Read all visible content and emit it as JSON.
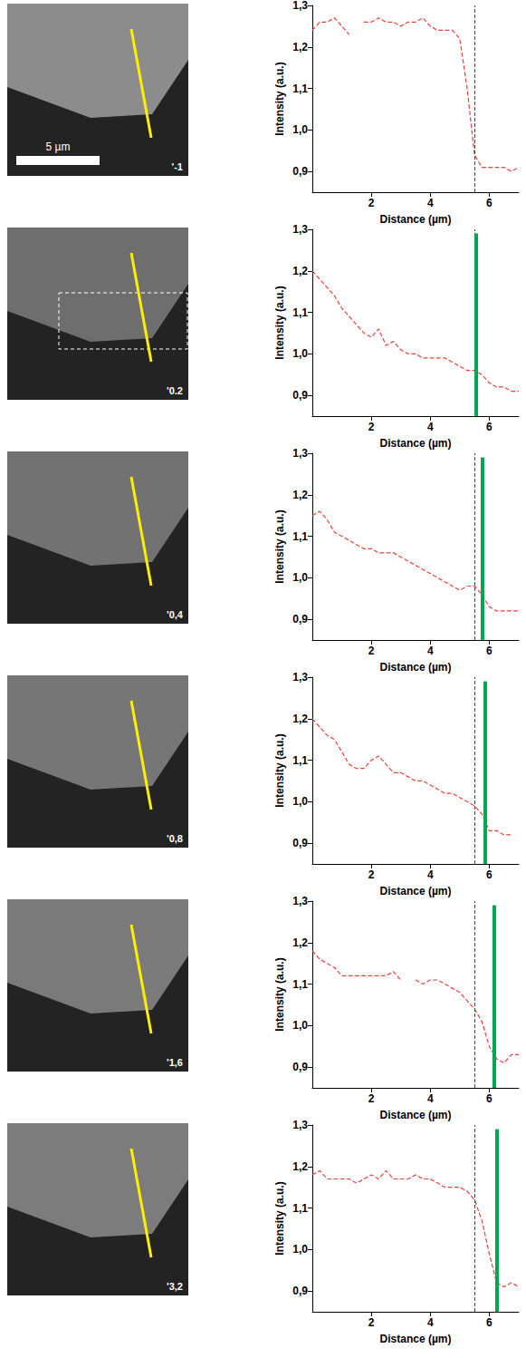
{
  "images": [
    {
      "label": "'-1",
      "scale_bar": "5 µm",
      "roi_box": false
    },
    {
      "label": "'0.2",
      "roi_box": true
    },
    {
      "label": "'0,4",
      "roi_box": false
    },
    {
      "label": "'0,8",
      "roi_box": false
    },
    {
      "label": "'1,6",
      "roi_box": false
    },
    {
      "label": "'3,2",
      "roi_box": false
    }
  ],
  "chart_data": [
    {
      "type": "line",
      "x_label": "Distance (µm)",
      "y_label": "Intensity (a.u.)",
      "x": [
        0,
        0.25,
        0.5,
        0.75,
        1,
        1.25,
        1.5,
        1.75,
        2,
        2.25,
        2.5,
        2.75,
        3,
        3.25,
        3.5,
        3.75,
        4,
        4.25,
        4.5,
        4.75,
        5,
        5.25,
        5.5,
        5.75,
        6,
        6.25,
        6.5,
        6.75,
        7
      ],
      "values": [
        1.24,
        1.26,
        1.26,
        1.27,
        1.25,
        1.23,
        null,
        1.26,
        1.26,
        1.27,
        1.26,
        1.26,
        1.25,
        1.26,
        1.26,
        1.27,
        1.25,
        1.24,
        1.24,
        1.24,
        1.22,
        1.1,
        0.94,
        0.91,
        0.91,
        0.91,
        0.91,
        0.9,
        0.91
      ],
      "color": "#e8423a",
      "line_style": "dashed",
      "xlim": [
        0,
        7
      ],
      "xticks": [
        2,
        4,
        6
      ],
      "ylim": [
        0.85,
        1.3
      ],
      "yticks": [
        {
          "value": 0.9,
          "label": "0,9"
        },
        {
          "value": 1.0,
          "label": "1,0"
        },
        {
          "value": 1.1,
          "label": "1,1"
        },
        {
          "value": 1.2,
          "label": "1,2"
        },
        {
          "value": 1.3,
          "label": "1,3"
        }
      ],
      "dashed_line_x": 5.5,
      "grid": false
    },
    {
      "type": "line",
      "x_label": "Distance (µm)",
      "y_label": "Intensity (a.u.)",
      "x": [
        0,
        0.25,
        0.5,
        0.75,
        1,
        1.25,
        1.5,
        1.75,
        2,
        2.25,
        2.5,
        2.75,
        3,
        3.25,
        3.5,
        3.75,
        4,
        4.25,
        4.5,
        4.75,
        5,
        5.25,
        5.5,
        5.75,
        6,
        6.25,
        6.5,
        6.75,
        7
      ],
      "values": [
        1.2,
        1.18,
        1.16,
        1.14,
        1.11,
        1.09,
        1.07,
        1.05,
        1.04,
        1.06,
        1.02,
        1.03,
        1.01,
        1.0,
        1.0,
        0.99,
        0.99,
        0.99,
        0.99,
        0.98,
        0.97,
        0.96,
        0.96,
        0.95,
        0.93,
        0.92,
        0.92,
        0.91,
        0.91
      ],
      "color": "#e8423a",
      "line_style": "dashed",
      "xlim": [
        0,
        7
      ],
      "xticks": [
        2,
        4,
        6
      ],
      "ylim": [
        0.85,
        1.3
      ],
      "yticks": [
        {
          "value": 0.9,
          "label": "0,9"
        },
        {
          "value": 1.0,
          "label": "1,0"
        },
        {
          "value": 1.1,
          "label": "1,1"
        },
        {
          "value": 1.2,
          "label": "1,2"
        },
        {
          "value": 1.3,
          "label": "1,3"
        }
      ],
      "dashed_line_x": 5.5,
      "green_bar_x": 5.55,
      "green_bar_top": 1.29,
      "green_bar_color": "#00a651",
      "grid": false
    },
    {
      "type": "line",
      "x_label": "Distance (µm)",
      "y_label": "Intensity (a.u.)",
      "x": [
        0,
        0.25,
        0.5,
        0.75,
        1,
        1.25,
        1.5,
        1.75,
        2,
        2.25,
        2.5,
        2.75,
        3,
        3.25,
        3.5,
        3.75,
        4,
        4.25,
        4.5,
        4.75,
        5,
        5.25,
        5.5,
        5.75,
        6,
        6.25,
        6.5,
        6.75,
        7
      ],
      "values": [
        1.15,
        1.16,
        1.14,
        1.11,
        1.1,
        1.09,
        1.08,
        1.07,
        1.07,
        1.06,
        1.06,
        1.06,
        1.05,
        1.04,
        1.03,
        1.02,
        1.01,
        1.0,
        0.99,
        0.98,
        0.97,
        0.98,
        0.98,
        0.96,
        0.93,
        0.92,
        0.92,
        0.92,
        0.92
      ],
      "color": "#e8423a",
      "line_style": "dashed",
      "xlim": [
        0,
        7
      ],
      "xticks": [
        2,
        4,
        6
      ],
      "ylim": [
        0.85,
        1.3
      ],
      "yticks": [
        {
          "value": 0.9,
          "label": "0,9"
        },
        {
          "value": 1.0,
          "label": "1,0"
        },
        {
          "value": 1.1,
          "label": "1,1"
        },
        {
          "value": 1.2,
          "label": "1,2"
        },
        {
          "value": 1.3,
          "label": "1,3"
        }
      ],
      "dashed_line_x": 5.5,
      "green_bar_x": 5.75,
      "green_bar_top": 1.29,
      "green_bar_color": "#00a651",
      "grid": false
    },
    {
      "type": "line",
      "x_label": "Distance (µm)",
      "y_label": "Intensity (a.u.)",
      "x": [
        0,
        0.25,
        0.5,
        0.75,
        1,
        1.25,
        1.5,
        1.75,
        2,
        2.25,
        2.5,
        2.75,
        3,
        3.25,
        3.5,
        3.75,
        4,
        4.25,
        4.5,
        4.75,
        5,
        5.25,
        5.5,
        5.75,
        6,
        6.25,
        6.5,
        6.75,
        7
      ],
      "values": [
        1.2,
        1.18,
        1.16,
        1.15,
        1.12,
        1.09,
        1.08,
        1.08,
        1.1,
        1.11,
        1.09,
        1.07,
        1.07,
        1.06,
        1.05,
        1.05,
        1.04,
        1.03,
        1.02,
        1.02,
        1.01,
        1.0,
        0.99,
        0.97,
        0.93,
        0.93,
        0.92,
        0.92,
        null
      ],
      "color": "#e8423a",
      "line_style": "dashed",
      "xlim": [
        0,
        7
      ],
      "xticks": [
        2,
        4,
        6
      ],
      "ylim": [
        0.85,
        1.3
      ],
      "yticks": [
        {
          "value": 0.9,
          "label": "0,9"
        },
        {
          "value": 1.0,
          "label": "1,0"
        },
        {
          "value": 1.1,
          "label": "1,1"
        },
        {
          "value": 1.2,
          "label": "1,2"
        },
        {
          "value": 1.3,
          "label": "1,3"
        }
      ],
      "dashed_line_x": 5.5,
      "green_bar_x": 5.85,
      "green_bar_top": 1.29,
      "green_bar_color": "#00a651",
      "grid": false
    },
    {
      "type": "line",
      "x_label": "Distance (µm)",
      "y_label": "Intensity (a.u.)",
      "x": [
        0,
        0.25,
        0.5,
        0.75,
        1,
        1.25,
        1.5,
        1.75,
        2,
        2.25,
        2.5,
        2.75,
        3,
        3.25,
        3.5,
        3.75,
        4,
        4.25,
        4.5,
        4.75,
        5,
        5.25,
        5.5,
        5.75,
        6,
        6.25,
        6.5,
        6.75,
        7
      ],
      "values": [
        1.18,
        1.16,
        1.15,
        1.14,
        1.12,
        1.12,
        1.12,
        1.12,
        1.12,
        1.12,
        1.12,
        1.13,
        1.11,
        null,
        1.11,
        1.1,
        1.11,
        1.11,
        1.1,
        1.09,
        1.08,
        1.06,
        1.04,
        1.01,
        0.95,
        0.92,
        0.91,
        0.93,
        0.93
      ],
      "color": "#e8423a",
      "line_style": "dashed",
      "xlim": [
        0,
        7
      ],
      "xticks": [
        2,
        4,
        6
      ],
      "ylim": [
        0.85,
        1.3
      ],
      "yticks": [
        {
          "value": 0.9,
          "label": "0,9"
        },
        {
          "value": 1.0,
          "label": "1,0"
        },
        {
          "value": 1.1,
          "label": "1,1"
        },
        {
          "value": 1.2,
          "label": "1,2"
        },
        {
          "value": 1.3,
          "label": "1,3"
        }
      ],
      "dashed_line_x": 5.5,
      "green_bar_x": 6.15,
      "green_bar_top": 1.29,
      "green_bar_color": "#00a651",
      "grid": false
    },
    {
      "type": "line",
      "x_label": "Distance (µm)",
      "y_label": "Intensity (a.u.)",
      "x": [
        0,
        0.25,
        0.5,
        0.75,
        1,
        1.25,
        1.5,
        1.75,
        2,
        2.25,
        2.5,
        2.75,
        3,
        3.25,
        3.5,
        3.75,
        4,
        4.25,
        4.5,
        4.75,
        5,
        5.25,
        5.5,
        5.75,
        6,
        6.25,
        6.5,
        6.75,
        7
      ],
      "values": [
        1.18,
        1.19,
        1.17,
        1.17,
        1.17,
        1.17,
        1.16,
        1.17,
        1.18,
        1.17,
        1.19,
        1.17,
        1.17,
        1.17,
        1.18,
        1.17,
        1.17,
        1.16,
        1.15,
        1.15,
        1.15,
        1.14,
        1.12,
        1.07,
        0.99,
        0.92,
        0.91,
        0.92,
        0.91
      ],
      "color": "#e8423a",
      "line_style": "dashed",
      "xlim": [
        0,
        7
      ],
      "xticks": [
        2,
        4,
        6
      ],
      "ylim": [
        0.85,
        1.3
      ],
      "yticks": [
        {
          "value": 0.9,
          "label": "0,9"
        },
        {
          "value": 1.0,
          "label": "1,0"
        },
        {
          "value": 1.1,
          "label": "1,1"
        },
        {
          "value": 1.2,
          "label": "1,2"
        },
        {
          "value": 1.3,
          "label": "1,3"
        }
      ],
      "dashed_line_x": 5.5,
      "green_bar_x": 6.25,
      "green_bar_top": 1.29,
      "green_bar_color": "#00a651",
      "grid": false
    }
  ]
}
